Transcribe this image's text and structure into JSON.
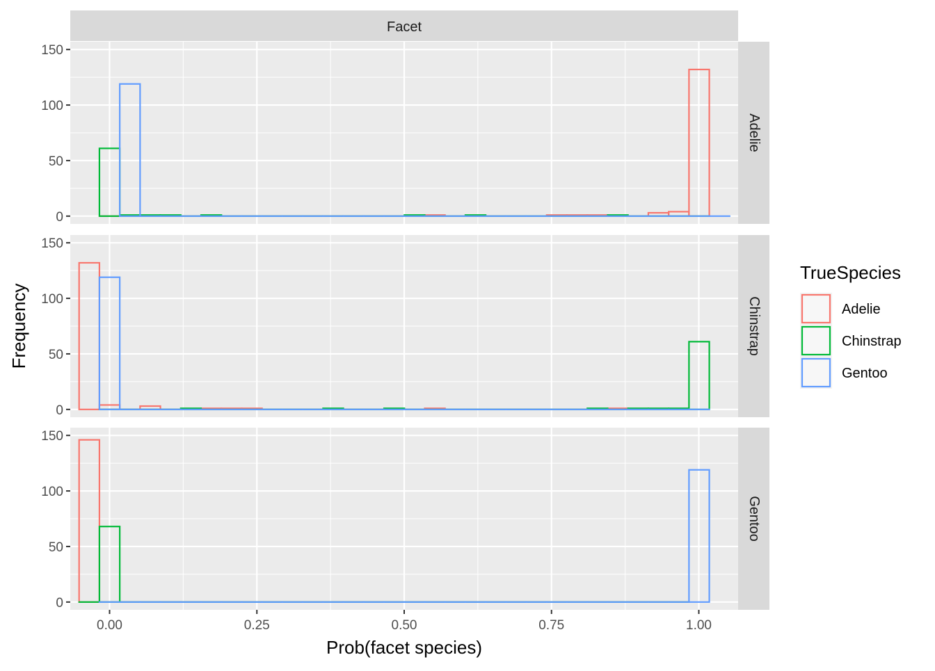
{
  "chart_data": {
    "type": "histogram",
    "facet_strip_label": "Facet",
    "xlabel": "Prob(facet species)",
    "ylabel": "Frequency",
    "xlim": [
      -0.0667,
      1.0667
    ],
    "ylim": [
      -7,
      157
    ],
    "x_ticks": [
      {
        "value": 0,
        "label": "0.00"
      },
      {
        "value": 0.25,
        "label": "0.25"
      },
      {
        "value": 0.5,
        "label": "0.50"
      },
      {
        "value": 0.75,
        "label": "0.75"
      },
      {
        "value": 1,
        "label": "1.00"
      }
    ],
    "y_ticks": [
      {
        "value": 0,
        "label": "0"
      },
      {
        "value": 50,
        "label": "50"
      },
      {
        "value": 100,
        "label": "100"
      },
      {
        "value": 150,
        "label": "150"
      }
    ],
    "bin_width": 0.0345,
    "bin_start": -0.0172,
    "num_bins": 30,
    "legend": {
      "title": "TrueSpecies",
      "position": "right",
      "entries": [
        {
          "name": "Adelie",
          "color": "#F8766D"
        },
        {
          "name": "Chinstrap",
          "color": "#00BA38"
        },
        {
          "name": "Gentoo",
          "color": "#619CFF"
        }
      ]
    },
    "facets": [
      {
        "label": "Adelie",
        "series": [
          {
            "name": "Adelie",
            "offset": 0.0,
            "counts": [
              0,
              0,
              0,
              0,
              0,
              0,
              0,
              0,
              0,
              0,
              0,
              0,
              0,
              0,
              0,
              0,
              1,
              0,
              0,
              0,
              0,
              0,
              1,
              1,
              1,
              0,
              0,
              3,
              4,
              132
            ]
          },
          {
            "name": "Chinstrap",
            "offset": 0.0,
            "counts": [
              61,
              1,
              1,
              1,
              0,
              1,
              0,
              0,
              0,
              0,
              0,
              0,
              0,
              0,
              0,
              1,
              0,
              0,
              1,
              0,
              0,
              0,
              0,
              0,
              0,
              1,
              0,
              0,
              0,
              0
            ]
          },
          {
            "name": "Gentoo",
            "offset": 0.0345,
            "counts": [
              119,
              0,
              0,
              0,
              0,
              0,
              0,
              0,
              0,
              0,
              0,
              0,
              0,
              0,
              0,
              0,
              0,
              0,
              0,
              0,
              0,
              0,
              0,
              0,
              0,
              0,
              0,
              0,
              0,
              0
            ]
          }
        ]
      },
      {
        "label": "Chinstrap",
        "series": [
          {
            "name": "Adelie",
            "offset": -0.0345,
            "counts": [
              132,
              4,
              0,
              3,
              0,
              0,
              1,
              1,
              1,
              0,
              0,
              0,
              0,
              0,
              0,
              0,
              0,
              1,
              0,
              0,
              0,
              0,
              0,
              0,
              0,
              0,
              1,
              0,
              0,
              0
            ]
          },
          {
            "name": "Chinstrap",
            "offset": 0.0,
            "counts": [
              0,
              0,
              0,
              0,
              1,
              0,
              0,
              0,
              0,
              0,
              0,
              1,
              0,
              0,
              1,
              0,
              0,
              0,
              0,
              0,
              0,
              0,
              0,
              0,
              1,
              0,
              1,
              1,
              1,
              61
            ]
          },
          {
            "name": "Gentoo",
            "offset": 0.0,
            "counts": [
              119,
              0,
              0,
              0,
              0,
              0,
              0,
              0,
              0,
              0,
              0,
              0,
              0,
              0,
              0,
              0,
              0,
              0,
              0,
              0,
              0,
              0,
              0,
              0,
              0,
              0,
              0,
              0,
              0,
              0
            ]
          }
        ]
      },
      {
        "label": "Gentoo",
        "series": [
          {
            "name": "Adelie",
            "offset": -0.0345,
            "counts": [
              146,
              0,
              0,
              0,
              0,
              0,
              0,
              0,
              0,
              0,
              0,
              0,
              0,
              0,
              0,
              0,
              0,
              0,
              0,
              0,
              0,
              0,
              0,
              0,
              0,
              0,
              0,
              0,
              0,
              0
            ]
          },
          {
            "name": "Chinstrap",
            "offset": -0.0345,
            "counts": [
              0,
              68,
              0,
              0,
              0,
              0,
              0,
              0,
              0,
              0,
              0,
              0,
              0,
              0,
              0,
              0,
              0,
              0,
              0,
              0,
              0,
              0,
              0,
              0,
              0,
              0,
              0,
              0,
              0,
              0
            ]
          },
          {
            "name": "Gentoo",
            "offset": 0.0,
            "counts": [
              0,
              0,
              0,
              0,
              0,
              0,
              0,
              0,
              0,
              0,
              0,
              0,
              0,
              0,
              0,
              0,
              0,
              0,
              0,
              0,
              0,
              0,
              0,
              0,
              0,
              0,
              0,
              0,
              0,
              119
            ]
          }
        ]
      }
    ]
  }
}
